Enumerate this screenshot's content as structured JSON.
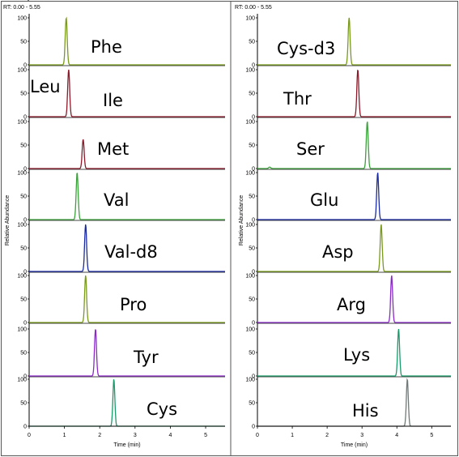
{
  "chart_data": [
    {
      "type": "line",
      "rt_header": "RT: 0.00 - 5.55",
      "xlabel": "Time (min)",
      "ylabel": "Relative Abundance",
      "xlim": [
        0,
        5.55
      ],
      "ylim": [
        0,
        100
      ],
      "xticks": [
        "0",
        "1",
        "2",
        "3",
        "4",
        "5"
      ],
      "yticks": [
        "0",
        "50",
        "100"
      ],
      "series": [
        {
          "name": "Phe",
          "color": "#7a9a1c",
          "peaks": [
            {
              "rt": 1.05,
              "height": 100
            }
          ]
        },
        {
          "name": "Leu",
          "color": "#8b1a2a",
          "peaks": [
            {
              "rt": 1.12,
              "height": 100
            }
          ]
        },
        {
          "name": "Ile",
          "color": "#8b1a2a",
          "peaks": [
            {
              "rt": 1.53,
              "height": 62
            }
          ]
        },
        {
          "name": "Met",
          "color": "#3ca03c",
          "peaks": [
            {
              "rt": 1.36,
              "height": 100
            }
          ]
        },
        {
          "name": "Val",
          "color": "#1a2aa0",
          "peaks": [
            {
              "rt": 1.6,
              "height": 100
            }
          ]
        },
        {
          "name": "Val-d8",
          "color": "#7a9a1c",
          "peaks": [
            {
              "rt": 1.6,
              "height": 100
            }
          ]
        },
        {
          "name": "Pro",
          "color": "#8a2ac8",
          "peaks": [
            {
              "rt": 1.88,
              "height": 100
            }
          ]
        },
        {
          "name": "Tyr",
          "color": "#1a9a6a",
          "peaks": [
            {
              "rt": 2.4,
              "height": 100
            }
          ]
        },
        {
          "name": "Cys",
          "color": "#707878",
          "peaks": [
            {
              "rt": 2.65,
              "height": 100
            }
          ]
        }
      ]
    },
    {
      "type": "line",
      "rt_header": "RT: 0.00 - 5.55",
      "xlabel": "Time (min)",
      "ylabel": "Relative Abundance",
      "xlim": [
        0,
        5.55
      ],
      "ylim": [
        0,
        100
      ],
      "xticks": [
        "0",
        "1",
        "2",
        "3",
        "4",
        "5"
      ],
      "yticks": [
        "0",
        "50",
        "100"
      ],
      "series": [
        {
          "name": "Cys-d3",
          "color": "#7a9a1c",
          "peaks": [
            {
              "rt": 2.63,
              "height": 100
            }
          ]
        },
        {
          "name": "Thr",
          "color": "#8b1a2a",
          "peaks": [
            {
              "rt": 2.88,
              "height": 100
            }
          ]
        },
        {
          "name": "Ser",
          "color": "#3ca03c",
          "peaks": [
            {
              "rt": 3.15,
              "height": 100
            },
            {
              "rt": 0.35,
              "height": 3
            }
          ]
        },
        {
          "name": "Glu",
          "color": "#1a2aa0",
          "peaks": [
            {
              "rt": 3.45,
              "height": 100
            }
          ]
        },
        {
          "name": "Asp",
          "color": "#7a9a1c",
          "peaks": [
            {
              "rt": 3.55,
              "height": 100
            }
          ]
        },
        {
          "name": "Arg",
          "color": "#8a2ac8",
          "peaks": [
            {
              "rt": 3.85,
              "height": 100
            }
          ]
        },
        {
          "name": "Lys",
          "color": "#1a9a6a",
          "peaks": [
            {
              "rt": 4.05,
              "height": 100
            }
          ]
        },
        {
          "name": "His",
          "color": "#707878",
          "peaks": [
            {
              "rt": 4.3,
              "height": 100
            }
          ]
        }
      ]
    }
  ]
}
